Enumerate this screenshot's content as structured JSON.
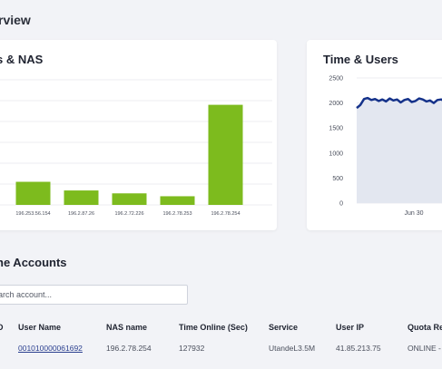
{
  "page": {
    "title": "rview"
  },
  "left_card": {
    "title": "s & NAS"
  },
  "right_card": {
    "title": "Time & Users"
  },
  "accounts": {
    "title": "ne Accounts",
    "search_placeholder": "earch account...",
    "columns": [
      "D",
      "User Name",
      "NAS name",
      "Time Online (Sec)",
      "Service",
      "User IP",
      "Quota Re"
    ],
    "rows": [
      {
        "user_name": "001010000061692",
        "nas_name": "196.2.78.254",
        "time_online": "127932",
        "service": "UtandeL3.5M",
        "user_ip": "41.85.213.75",
        "quota": "ONLINE -"
      }
    ]
  },
  "chart_data": [
    {
      "type": "bar",
      "title": "s & NAS",
      "categories": [
        "",
        "196.253.56.154",
        "196.2.87.26",
        "196.2.72.226",
        "196.2.78.253",
        "196.2.78.254"
      ],
      "values": [
        null,
        24,
        15,
        12,
        9,
        104
      ],
      "ylim": [
        0,
        130
      ],
      "grid": true,
      "color": "#7dbb1e"
    },
    {
      "type": "area",
      "title": "Time & Users",
      "x_tick_labels": [
        "Jun 30"
      ],
      "y_ticks": [
        0,
        500,
        1000,
        1500,
        2000,
        2500
      ],
      "ylim": [
        0,
        2500
      ],
      "series": [
        {
          "values": [
            1900,
            1960,
            2080,
            2100,
            2060,
            2080,
            2040,
            2070,
            2030,
            2090,
            2050,
            2070,
            2010,
            2060,
            2080,
            2020,
            2040,
            2090,
            2070,
            2030,
            2050,
            2000,
            2060,
            2070,
            2040
          ]
        }
      ],
      "line_color": "#15328a",
      "fill_color": "#e3e7f0"
    }
  ]
}
